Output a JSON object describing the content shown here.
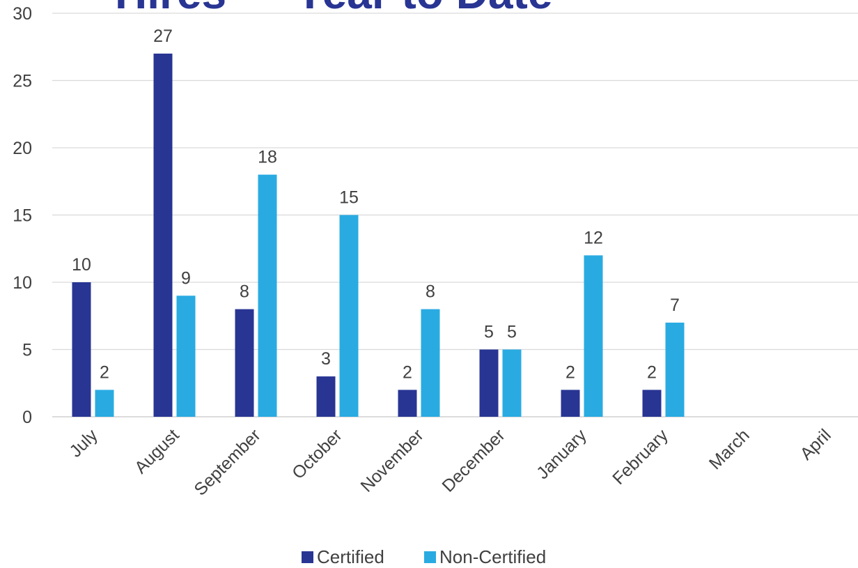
{
  "chart_data": {
    "type": "bar",
    "title": "Hires — Year to Date",
    "xlabel": "",
    "ylabel": "",
    "categories": [
      "July",
      "August",
      "September",
      "October",
      "November",
      "December",
      "January",
      "February",
      "March",
      "April"
    ],
    "series": [
      {
        "name": "Certified",
        "color": "#283593",
        "values": [
          10,
          27,
          8,
          3,
          2,
          5,
          2,
          2,
          null,
          null
        ]
      },
      {
        "name": "Non-Certified",
        "color": "#29abe2",
        "values": [
          2,
          9,
          18,
          15,
          8,
          5,
          12,
          7,
          null,
          null
        ]
      }
    ],
    "ylim": [
      0,
      30
    ],
    "yticks": [
      0,
      5,
      10,
      15,
      20,
      25,
      30
    ],
    "grid": true,
    "data_labels": true,
    "legend_position": "bottom",
    "title_color": "#283593"
  }
}
